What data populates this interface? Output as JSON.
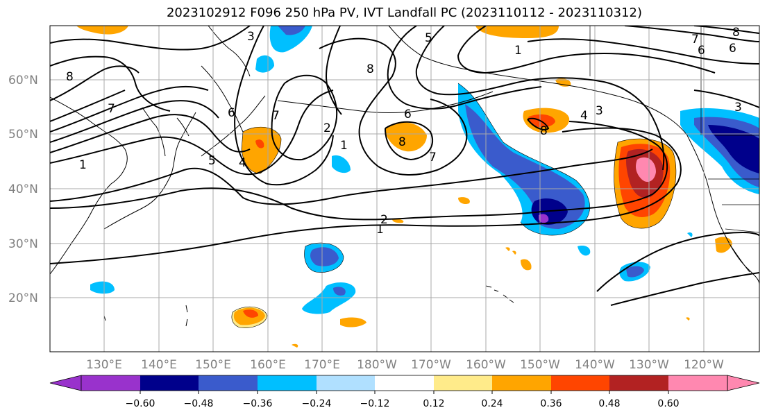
{
  "title": "2023102912 F096 250 hPa PV, IVT Landfall PC (2023110112 - 2023110312)",
  "lat_labels": [
    "60°N",
    "50°N",
    "40°N",
    "30°N",
    "20°N"
  ],
  "lon_labels": [
    "130°E",
    "140°E",
    "150°E",
    "160°E",
    "170°E",
    "180°W",
    "170°W",
    "160°W",
    "150°W",
    "140°W",
    "130°W",
    "120°W"
  ],
  "colorbar": {
    "ticks": [
      "−0.60",
      "−0.48",
      "−0.36",
      "−0.24",
      "−0.12",
      "0.12",
      "0.24",
      "0.36",
      "0.48",
      "0.60"
    ],
    "colors": [
      "#9932CC",
      "#00008B",
      "#3A5BCC",
      "#00BFFF",
      "#B0E0FF",
      "#FFFFFF",
      "#FFEB8A",
      "#FFA500",
      "#FF4500",
      "#B22222",
      "#FF88B0"
    ]
  },
  "contour_labels": [
    "3",
    "8",
    "7",
    "1",
    "6",
    "7",
    "4",
    "5",
    "2",
    "6",
    "7",
    "8",
    "1",
    "8",
    "1",
    "2",
    "1",
    "4",
    "3",
    "3",
    "5",
    "6",
    "7",
    "8",
    "6",
    "8"
  ]
}
